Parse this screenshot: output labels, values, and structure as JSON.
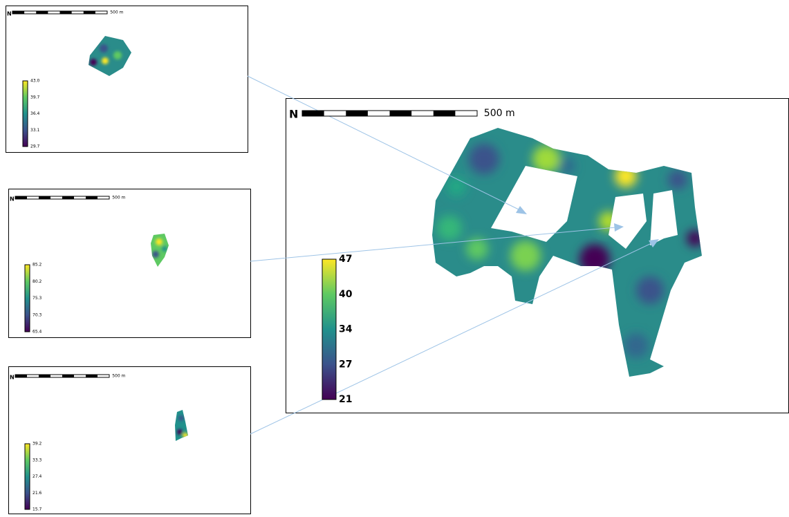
{
  "insets": [
    {
      "north_label": "N",
      "scale_label": "500 m",
      "legend": [
        "43.0",
        "39.7",
        "36.4",
        "33.1",
        "29.7"
      ]
    },
    {
      "north_label": "N",
      "scale_label": "500 m",
      "legend": [
        "85.2",
        "80.2",
        "75.3",
        "70.3",
        "65.4"
      ]
    },
    {
      "north_label": "N",
      "scale_label": "500 m",
      "legend": [
        "39.2",
        "33.3",
        "27.4",
        "21.6",
        "15.7"
      ]
    }
  ],
  "main": {
    "north_label": "N",
    "scale_label": "500 m",
    "legend": [
      "47",
      "40",
      "34",
      "27",
      "21"
    ]
  }
}
